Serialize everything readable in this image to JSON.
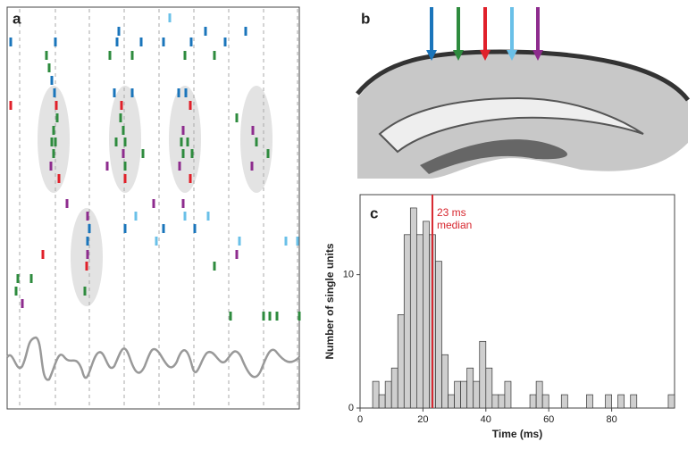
{
  "panel_labels": [
    "a",
    "b",
    "c"
  ],
  "chart_data": {
    "type": "histogram",
    "xlabel": "Time (ms)",
    "ylabel": "Number of single units",
    "bins": [
      4,
      6,
      8,
      10,
      12,
      14,
      16,
      18,
      20,
      22,
      24,
      26,
      28,
      30,
      32,
      34,
      36,
      38,
      40,
      42,
      44,
      46,
      48,
      50,
      52,
      54,
      56,
      58,
      60,
      62,
      64,
      66,
      68,
      70,
      72,
      74,
      76,
      78,
      80,
      82,
      84,
      86,
      88,
      90,
      92,
      94,
      96,
      98,
      100
    ],
    "counts": [
      2,
      1,
      2,
      3,
      7,
      13,
      15,
      13,
      14,
      13,
      11,
      4,
      1,
      2,
      2,
      3,
      2,
      5,
      3,
      1,
      1,
      2,
      0,
      0,
      0,
      1,
      2,
      1,
      0,
      0,
      1,
      0,
      0,
      0,
      1,
      0,
      0,
      1,
      0,
      1,
      0,
      1,
      0,
      0,
      0,
      0,
      0,
      1
    ],
    "color": "#cfcfcf",
    "xlim": [
      0,
      100
    ],
    "ylim": [
      0,
      16
    ],
    "xticks": [
      0,
      20,
      40,
      60,
      80
    ],
    "yticks": [
      0,
      10
    ],
    "median": 23,
    "median_color": "#d7262e",
    "annotations": [
      "23 ms",
      "median"
    ]
  }
}
